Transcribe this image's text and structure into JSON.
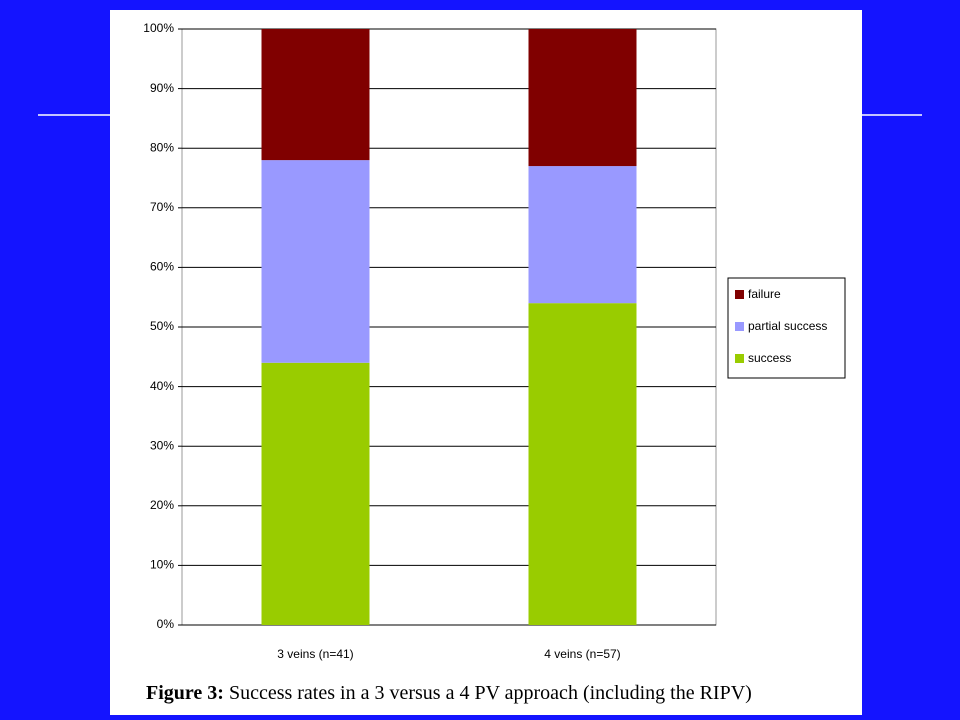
{
  "chart_data": {
    "type": "stacked_bar",
    "categories": [
      "3 veins (n=41)",
      "4 veins (n=57)"
    ],
    "series": [
      {
        "name": "success",
        "color": "#99cc00",
        "values": [
          44,
          54
        ]
      },
      {
        "name": "partial success",
        "color": "#9999ff",
        "values": [
          34,
          23
        ]
      },
      {
        "name": "failure",
        "color": "#800000",
        "values": [
          22,
          23
        ]
      }
    ],
    "ylim": [
      0,
      100
    ],
    "yticks": [
      {
        "value": 0,
        "label": "0%"
      },
      {
        "value": 10,
        "label": "10%"
      },
      {
        "value": 20,
        "label": "20%"
      },
      {
        "value": 30,
        "label": "30%"
      },
      {
        "value": 40,
        "label": "40%"
      },
      {
        "value": 50,
        "label": "50%"
      },
      {
        "value": 60,
        "label": "60%"
      },
      {
        "value": 70,
        "label": "70%"
      },
      {
        "value": 80,
        "label": "80%"
      },
      {
        "value": 90,
        "label": "90%"
      },
      {
        "value": 100,
        "label": "100%"
      }
    ],
    "grid": true,
    "legend": "right",
    "caption_label": "Figure 3:",
    "caption": "Success rates in a 3 versus a 4 PV approach (including the RIPV)"
  }
}
